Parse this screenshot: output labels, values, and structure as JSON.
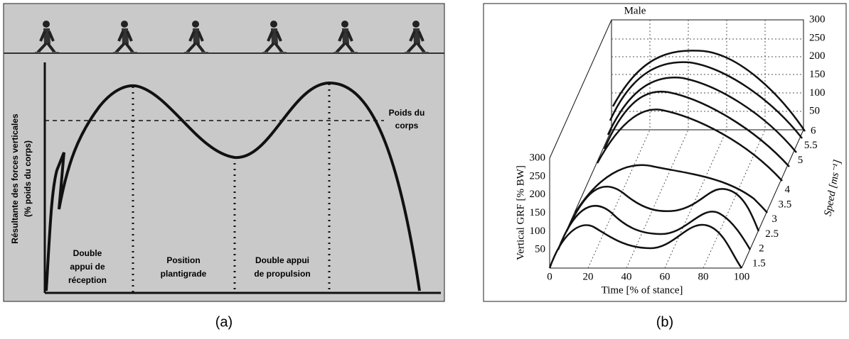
{
  "panel_a": {
    "caption": "(a)",
    "y_label": [
      "Résultante des forces verticales",
      "(% poids du corps)"
    ],
    "body_weight_label": [
      "Poids du",
      "corps"
    ],
    "phases": [
      [
        "Double",
        "appui de",
        "réception"
      ],
      [
        "Position",
        "plantigrade"
      ],
      [
        "Double appui",
        "de propulsion"
      ]
    ]
  },
  "panel_b": {
    "caption": "(b)",
    "title": "Male",
    "y_label": "Vertical GRF [% BW]",
    "x_label": "Time [% of stance]",
    "z_label": "Speed [ms⁻¹]",
    "xticks": [
      0,
      20,
      40,
      60,
      80,
      100
    ],
    "yticks": [
      50,
      100,
      150,
      200,
      250,
      300
    ],
    "back_yticks": [
      50,
      100,
      150,
      200,
      250,
      300
    ],
    "speed_ticks": [
      1.5,
      2,
      2.5,
      3,
      3.5,
      4,
      5,
      5.5,
      6
    ]
  }
}
